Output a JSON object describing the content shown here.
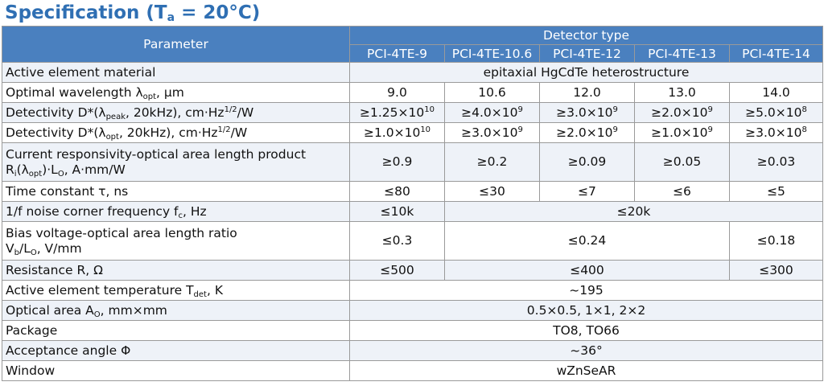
{
  "title": {
    "prefix": "Specification (T",
    "sub": "a",
    "suffix": " = 20°C)"
  },
  "header": {
    "parameter": "Parameter",
    "detector_type": "Detector type",
    "models": [
      "PCI-4TE-9",
      "PCI-4TE-10.6",
      "PCI-4TE-12",
      "PCI-4TE-13",
      "PCI-4TE-14"
    ]
  },
  "rows": {
    "material": {
      "label": "Active element material",
      "value": "epitaxial HgCdTe heterostructure"
    },
    "wavelength": {
      "label_pre": "Optimal wavelength λ",
      "label_sub": "opt",
      "label_post": ", µm",
      "values": [
        "9.0",
        "10.6",
        "12.0",
        "13.0",
        "14.0"
      ]
    },
    "det_peak": {
      "label_pre": "Detectivity D*(λ",
      "label_sub": "peak",
      "label_mid": ", 20kHz), cm·Hz",
      "label_sup": "1/2",
      "label_post": "/W",
      "values": [
        {
          "m": "≥1.25×10",
          "e": "10"
        },
        {
          "m": "≥4.0×10",
          "e": "9"
        },
        {
          "m": "≥3.0×10",
          "e": "9"
        },
        {
          "m": "≥2.0×10",
          "e": "9"
        },
        {
          "m": "≥5.0×10",
          "e": "8"
        }
      ]
    },
    "det_opt": {
      "label_pre": "Detectivity D*(λ",
      "label_sub": "opt",
      "label_mid": ", 20kHz), cm·Hz",
      "label_sup": "1/2",
      "label_post": "/W",
      "values": [
        {
          "m": "≥1.0×10",
          "e": "10"
        },
        {
          "m": "≥3.0×10",
          "e": "9"
        },
        {
          "m": "≥2.0×10",
          "e": "9"
        },
        {
          "m": "≥1.0×10",
          "e": "9"
        },
        {
          "m": "≥3.0×10",
          "e": "8"
        }
      ]
    },
    "responsivity": {
      "line1": "Current responsivity-optical area length product",
      "l2_a": "R",
      "l2_a_sub": "i",
      "l2_b": "(λ",
      "l2_b_sub": "opt",
      "l2_c": ")·L",
      "l2_c_sub": "O",
      "l2_d": ", A·mm/W",
      "values": [
        "≥0.9",
        "≥0.2",
        "≥0.09",
        "≥0.05",
        "≥0.03"
      ]
    },
    "time_constant": {
      "label": "Time constant τ, ns",
      "values": [
        "≤80",
        "≤30",
        "≤7",
        "≤6",
        "≤5"
      ]
    },
    "noise": {
      "label_pre": "1/f noise corner frequency f",
      "label_sub": "c",
      "label_post": ", Hz",
      "v1": "≤10k",
      "v2": "≤20k"
    },
    "bias": {
      "line1": "Bias voltage-optical area length ratio",
      "l2_a": "V",
      "l2_a_sub": "b",
      "l2_b": "/L",
      "l2_b_sub": "O",
      "l2_c": ", V/mm",
      "v1": "≤0.3",
      "v2": "≤0.24",
      "v3": "≤0.18"
    },
    "resistance": {
      "label": "Resistance R, Ω",
      "v1": "≤500",
      "v2": "≤400",
      "v3": "≤300"
    },
    "temperature": {
      "label_pre": "Active element temperature T",
      "label_sub": "det",
      "label_post": ", K",
      "value": "~195"
    },
    "optical_area": {
      "label_pre": "Optical area A",
      "label_sub": "O",
      "label_post": ", mm×mm",
      "value": "0.5×0.5, 1×1, 2×2"
    },
    "package": {
      "label": "Package",
      "value": "TO8, TO66"
    },
    "acceptance": {
      "label": "Acceptance angle Φ",
      "value": "~36°"
    },
    "window": {
      "label": "Window",
      "value": "wZnSeAR"
    }
  },
  "colors": {
    "header_bg": "#4a80bf",
    "title": "#2f6fb3",
    "row_alt": "#eef2f8"
  }
}
